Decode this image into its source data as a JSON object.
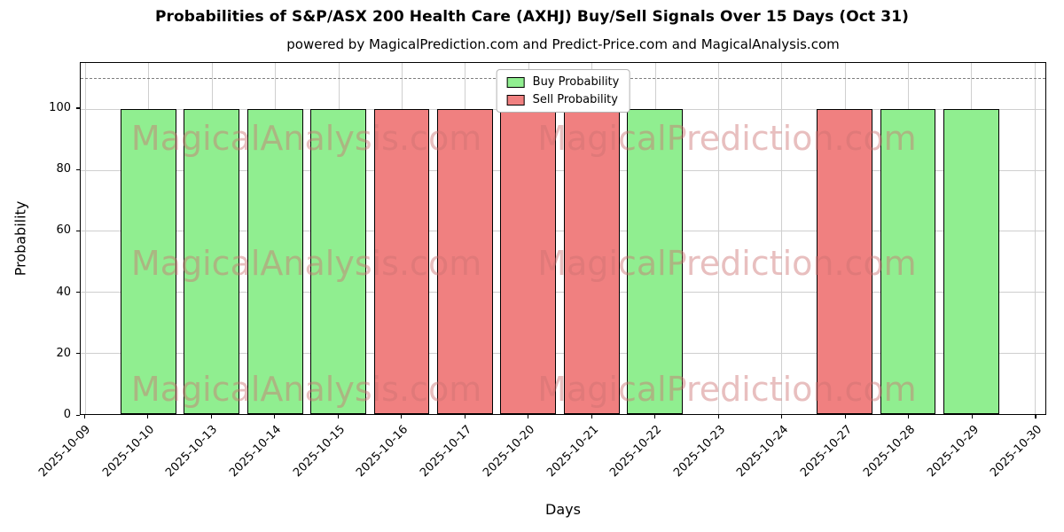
{
  "chart_data": {
    "type": "bar",
    "title": "Probabilities of S&P/ASX 200 Health Care (AXHJ) Buy/Sell Signals Over 15 Days (Oct 31)",
    "subtitle": "powered by MagicalPrediction.com and Predict-Price.com and MagicalAnalysis.com",
    "xlabel": "Days",
    "ylabel": "Probability",
    "ylim": [
      0,
      115
    ],
    "yticks": [
      0,
      20,
      40,
      60,
      80,
      100
    ],
    "grid": true,
    "threshold_line_y": 110,
    "categories": [
      "2025-10-09",
      "2025-10-10",
      "2025-10-13",
      "2025-10-14",
      "2025-10-15",
      "2025-10-16",
      "2025-10-17",
      "2025-10-20",
      "2025-10-21",
      "2025-10-22",
      "2025-10-23",
      "2025-10-24",
      "2025-10-27",
      "2025-10-28",
      "2025-10-29",
      "2025-10-30"
    ],
    "series": [
      {
        "name": "Buy Probability",
        "color": "#90EE90",
        "values": [
          null,
          100,
          100,
          100,
          100,
          null,
          null,
          null,
          null,
          100,
          null,
          null,
          null,
          100,
          100,
          null
        ]
      },
      {
        "name": "Sell Probability",
        "color": "#F08080",
        "values": [
          null,
          null,
          null,
          null,
          null,
          100,
          100,
          100,
          100,
          null,
          null,
          null,
          100,
          null,
          null,
          null
        ]
      }
    ],
    "legend_position": "upper center",
    "bar_edge_color": "#000000",
    "watermarks": [
      "MagicalAnalysis.com",
      "MagicalPrediction.com"
    ]
  }
}
